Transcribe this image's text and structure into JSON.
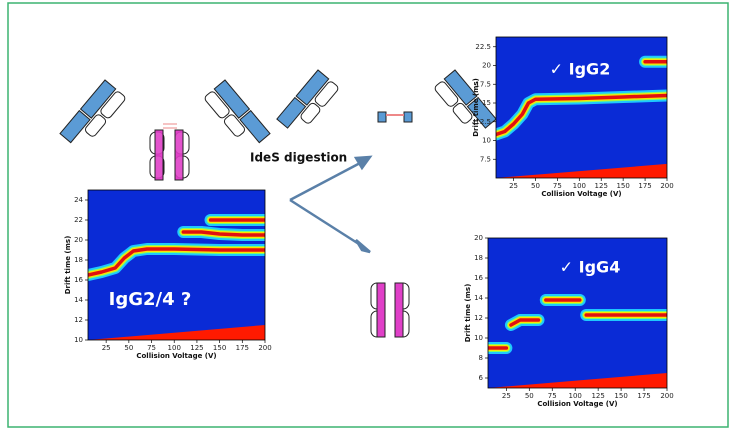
{
  "annotation": "IdeS digestion",
  "plots": [
    {
      "label": "IgG2/4 ?",
      "x_label": "Collision Voltage (V)",
      "y_label": "Drift time (ms)",
      "xlim": [
        5,
        200
      ],
      "ylim": [
        10,
        25
      ],
      "xticks": [
        25,
        50,
        75,
        100,
        125,
        150,
        175,
        200
      ],
      "yticks": [
        10,
        12,
        14,
        16,
        18,
        20,
        22,
        24
      ],
      "ridges": [
        {
          "x": [
            5,
            20,
            35,
            45,
            55,
            70,
            100,
            150,
            200
          ],
          "y": [
            16.5,
            16.8,
            17.2,
            18.2,
            18.9,
            19.1,
            19.1,
            19,
            19
          ]
        },
        {
          "x": [
            110,
            130,
            150,
            175,
            200
          ],
          "y": [
            20.8,
            20.8,
            20.6,
            20.5,
            20.5
          ]
        },
        {
          "x": [
            140,
            160,
            180,
            200
          ],
          "y": [
            22,
            22,
            22,
            22
          ]
        }
      ]
    },
    {
      "label": "✓ IgG2",
      "x_label": "Collision Voltage (V)",
      "y_label": "Drift time (ms)",
      "xlim": [
        5,
        200
      ],
      "ylim": [
        5,
        23.8
      ],
      "xticks": [
        25,
        50,
        75,
        100,
        125,
        150,
        175,
        200
      ],
      "yticks": [
        7.5,
        10,
        12.5,
        15,
        17.5,
        20,
        22.5
      ],
      "ridges": [
        {
          "x": [
            5,
            15,
            25,
            35,
            42,
            50,
            100,
            150,
            200
          ],
          "y": [
            10.8,
            11.2,
            12.2,
            13.5,
            15,
            15.5,
            15.6,
            15.8,
            16
          ]
        },
        {
          "x": [
            175,
            190,
            200
          ],
          "y": [
            20.5,
            20.5,
            20.5
          ]
        }
      ]
    },
    {
      "label": "✓ IgG4",
      "x_label": "Collision Voltage (V)",
      "y_label": "Drift time (ms)",
      "xlim": [
        5,
        200
      ],
      "ylim": [
        5,
        20
      ],
      "xticks": [
        25,
        50,
        75,
        100,
        125,
        150,
        175,
        200
      ],
      "yticks": [
        6,
        8,
        10,
        12,
        14,
        16,
        18,
        20
      ],
      "ridges": [
        {
          "x": [
            5,
            15,
            25
          ],
          "y": [
            9,
            9,
            9
          ]
        },
        {
          "x": [
            30,
            40,
            50,
            60
          ],
          "y": [
            11.3,
            11.8,
            11.8,
            11.8
          ]
        },
        {
          "x": [
            68,
            80,
            100,
            105
          ],
          "y": [
            13.8,
            13.8,
            13.8,
            13.8
          ]
        },
        {
          "x": [
            112,
            140,
            170,
            200
          ],
          "y": [
            12.3,
            12.3,
            12.3,
            12.3
          ]
        }
      ]
    }
  ]
}
